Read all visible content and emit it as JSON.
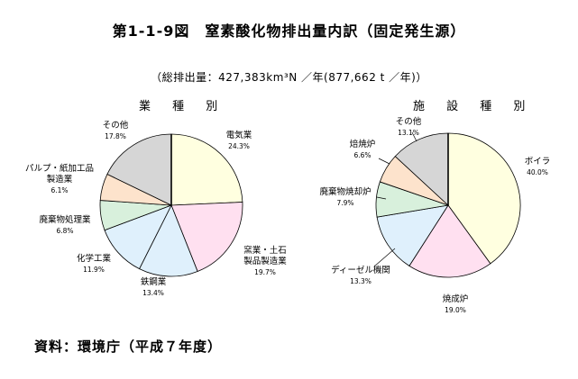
{
  "title": "第1-1-9図　窒素酸化物排出量内訳（固定発生源）",
  "subtitle": "（総排出量：427,383km³N ／年(877,662 t ／年)）",
  "source": "資料：環境庁（平成７年度）",
  "colors": {
    "yellow": "#ffffe0",
    "pink": "#ffe0f0",
    "blue": "#dff0fc",
    "green": "#d8f0dc",
    "peach": "#fde3cc",
    "gray": "#d6d6d6"
  },
  "chart_data": [
    {
      "type": "pie",
      "title": "業 種 別",
      "slices": [
        {
          "label": "電気業",
          "value": 24.3,
          "pct_label": "24.3%",
          "color": "#ffffe0"
        },
        {
          "label": "窯業・土石製品製造業",
          "value": 19.7,
          "pct_label": "19.7%",
          "color": "#ffe0f0"
        },
        {
          "label": "鉄鋼業",
          "value": 13.4,
          "pct_label": "13.4%",
          "color": "#dff0fc"
        },
        {
          "label": "化学工業",
          "value": 11.9,
          "pct_label": "11.9%",
          "color": "#dff0fc"
        },
        {
          "label": "廃棄物処理業",
          "value": 6.8,
          "pct_label": "6.8%",
          "color": "#d8f0dc"
        },
        {
          "label": "パルプ・紙加工品製造業",
          "value": 6.1,
          "pct_label": "6.1%",
          "color": "#fde3cc"
        },
        {
          "label": "その他",
          "value": 17.8,
          "pct_label": "17.8%",
          "color": "#d6d6d6"
        }
      ]
    },
    {
      "type": "pie",
      "title": "施 設 種 別",
      "slices": [
        {
          "label": "ボイラ",
          "value": 40.0,
          "pct_label": "40.0%",
          "color": "#ffffe0"
        },
        {
          "label": "焼成炉",
          "value": 19.0,
          "pct_label": "19.0%",
          "color": "#ffe0f0"
        },
        {
          "label": "ディーゼル機関",
          "value": 13.3,
          "pct_label": "13.3%",
          "color": "#dff0fc"
        },
        {
          "label": "廃棄物焼却炉",
          "value": 7.9,
          "pct_label": "7.9%",
          "color": "#d8f0dc"
        },
        {
          "label": "焙焼炉",
          "value": 6.6,
          "pct_label": "6.6%",
          "color": "#fde3cc"
        },
        {
          "label": "その他",
          "value": 13.1,
          "pct_label": "13.1%",
          "color": "#d6d6d6"
        }
      ]
    }
  ]
}
